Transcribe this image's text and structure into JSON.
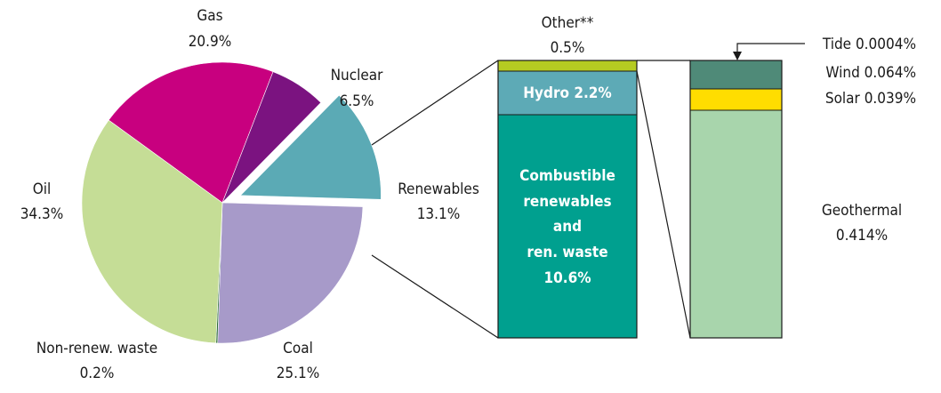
{
  "chart_data": {
    "type": "pie",
    "title": "",
    "main_pie": {
      "slices": [
        {
          "label": "Gas",
          "value_label": "20.9%",
          "value": 20.9,
          "color": "#C8007F"
        },
        {
          "label": "Nuclear",
          "value_label": "6.5%",
          "value": 6.5,
          "color": "#7B1380"
        },
        {
          "label": "Renewables",
          "value_label": "13.1%",
          "value": 13.1,
          "color": "#5BAAB5",
          "exploded": true
        },
        {
          "label": "Coal",
          "value_label": "25.1%",
          "value": 25.1,
          "color": "#A79AC9"
        },
        {
          "label": "Non-renew. waste",
          "value_label": "0.2%",
          "value": 0.2,
          "color": "#2E6B3A"
        },
        {
          "label": "Oil",
          "value_label": "34.3%",
          "value": 34.3,
          "color": "#C5DD96"
        }
      ]
    },
    "renewables_breakdown": {
      "type": "stacked-bar",
      "segments": [
        {
          "label": "Other**",
          "value_label": "0.5%",
          "value": 0.5,
          "color": "#B5CB22"
        },
        {
          "label": "Hydro",
          "value_label": "2.2%",
          "value": 2.2,
          "color": "#5DAAB6"
        },
        {
          "label": "Combustible renewables and ren. waste",
          "value_label": "10.6%",
          "value": 10.6,
          "color": "#00A08F"
        }
      ],
      "hydro_text": "Hydro 2.2%",
      "combustible_lines": [
        "Combustible",
        "renewables",
        "and",
        "ren. waste",
        "10.6%"
      ]
    },
    "other_breakdown": {
      "type": "stacked-bar",
      "segments": [
        {
          "label": "Tide",
          "value_label": "0.0004%",
          "value": 0.0004,
          "color": "#4F8A78"
        },
        {
          "label": "Wind",
          "value_label": "0.064%",
          "value": 0.064,
          "color": "#4F8A78"
        },
        {
          "label": "Solar",
          "value_label": "0.039%",
          "value": 0.039,
          "color": "#FFDD00"
        },
        {
          "label": "Geothermal",
          "value_label": "0.414%",
          "value": 0.414,
          "color": "#A8D5AC"
        }
      ],
      "tide_text": "Tide 0.0004%",
      "wind_text": "Wind 0.064%",
      "solar_text": "Solar 0.039%"
    }
  }
}
